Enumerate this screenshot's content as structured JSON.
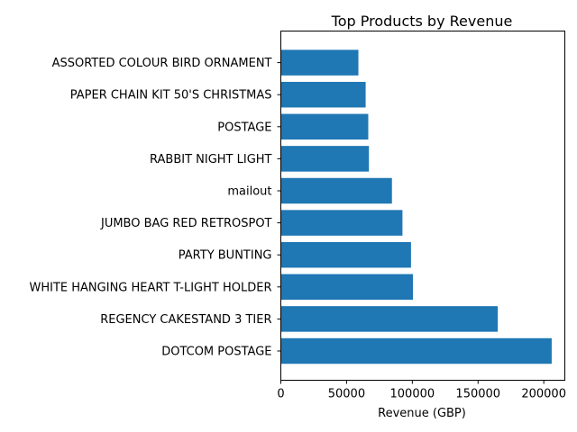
{
  "chart_data": {
    "type": "bar",
    "orientation": "horizontal",
    "title": "Top Products by Revenue",
    "xlabel": "Revenue (GBP)",
    "ylabel": "",
    "categories": [
      "DOTCOM POSTAGE",
      "REGENCY CAKESTAND 3 TIER",
      "WHITE HANGING HEART T-LIGHT HOLDER",
      "PARTY BUNTING",
      "JUMBO BAG RED RETROSPOT",
      "mailout",
      "RABBIT NIGHT LIGHT",
      "POSTAGE",
      "PAPER CHAIN KIT 50'S CHRISTMAS ",
      "ASSORTED COLOUR BIRD ORNAMENT"
    ],
    "values": [
      206000,
      165000,
      100500,
      99000,
      92500,
      84500,
      67000,
      66500,
      64500,
      59000
    ],
    "xlim": [
      0,
      216000
    ],
    "xticks": [
      0,
      50000,
      100000,
      150000,
      200000
    ],
    "xtick_labels": [
      "0",
      "50000",
      "100000",
      "150000",
      "200000"
    ],
    "grid": false,
    "bar_color": "#1f77b4"
  }
}
